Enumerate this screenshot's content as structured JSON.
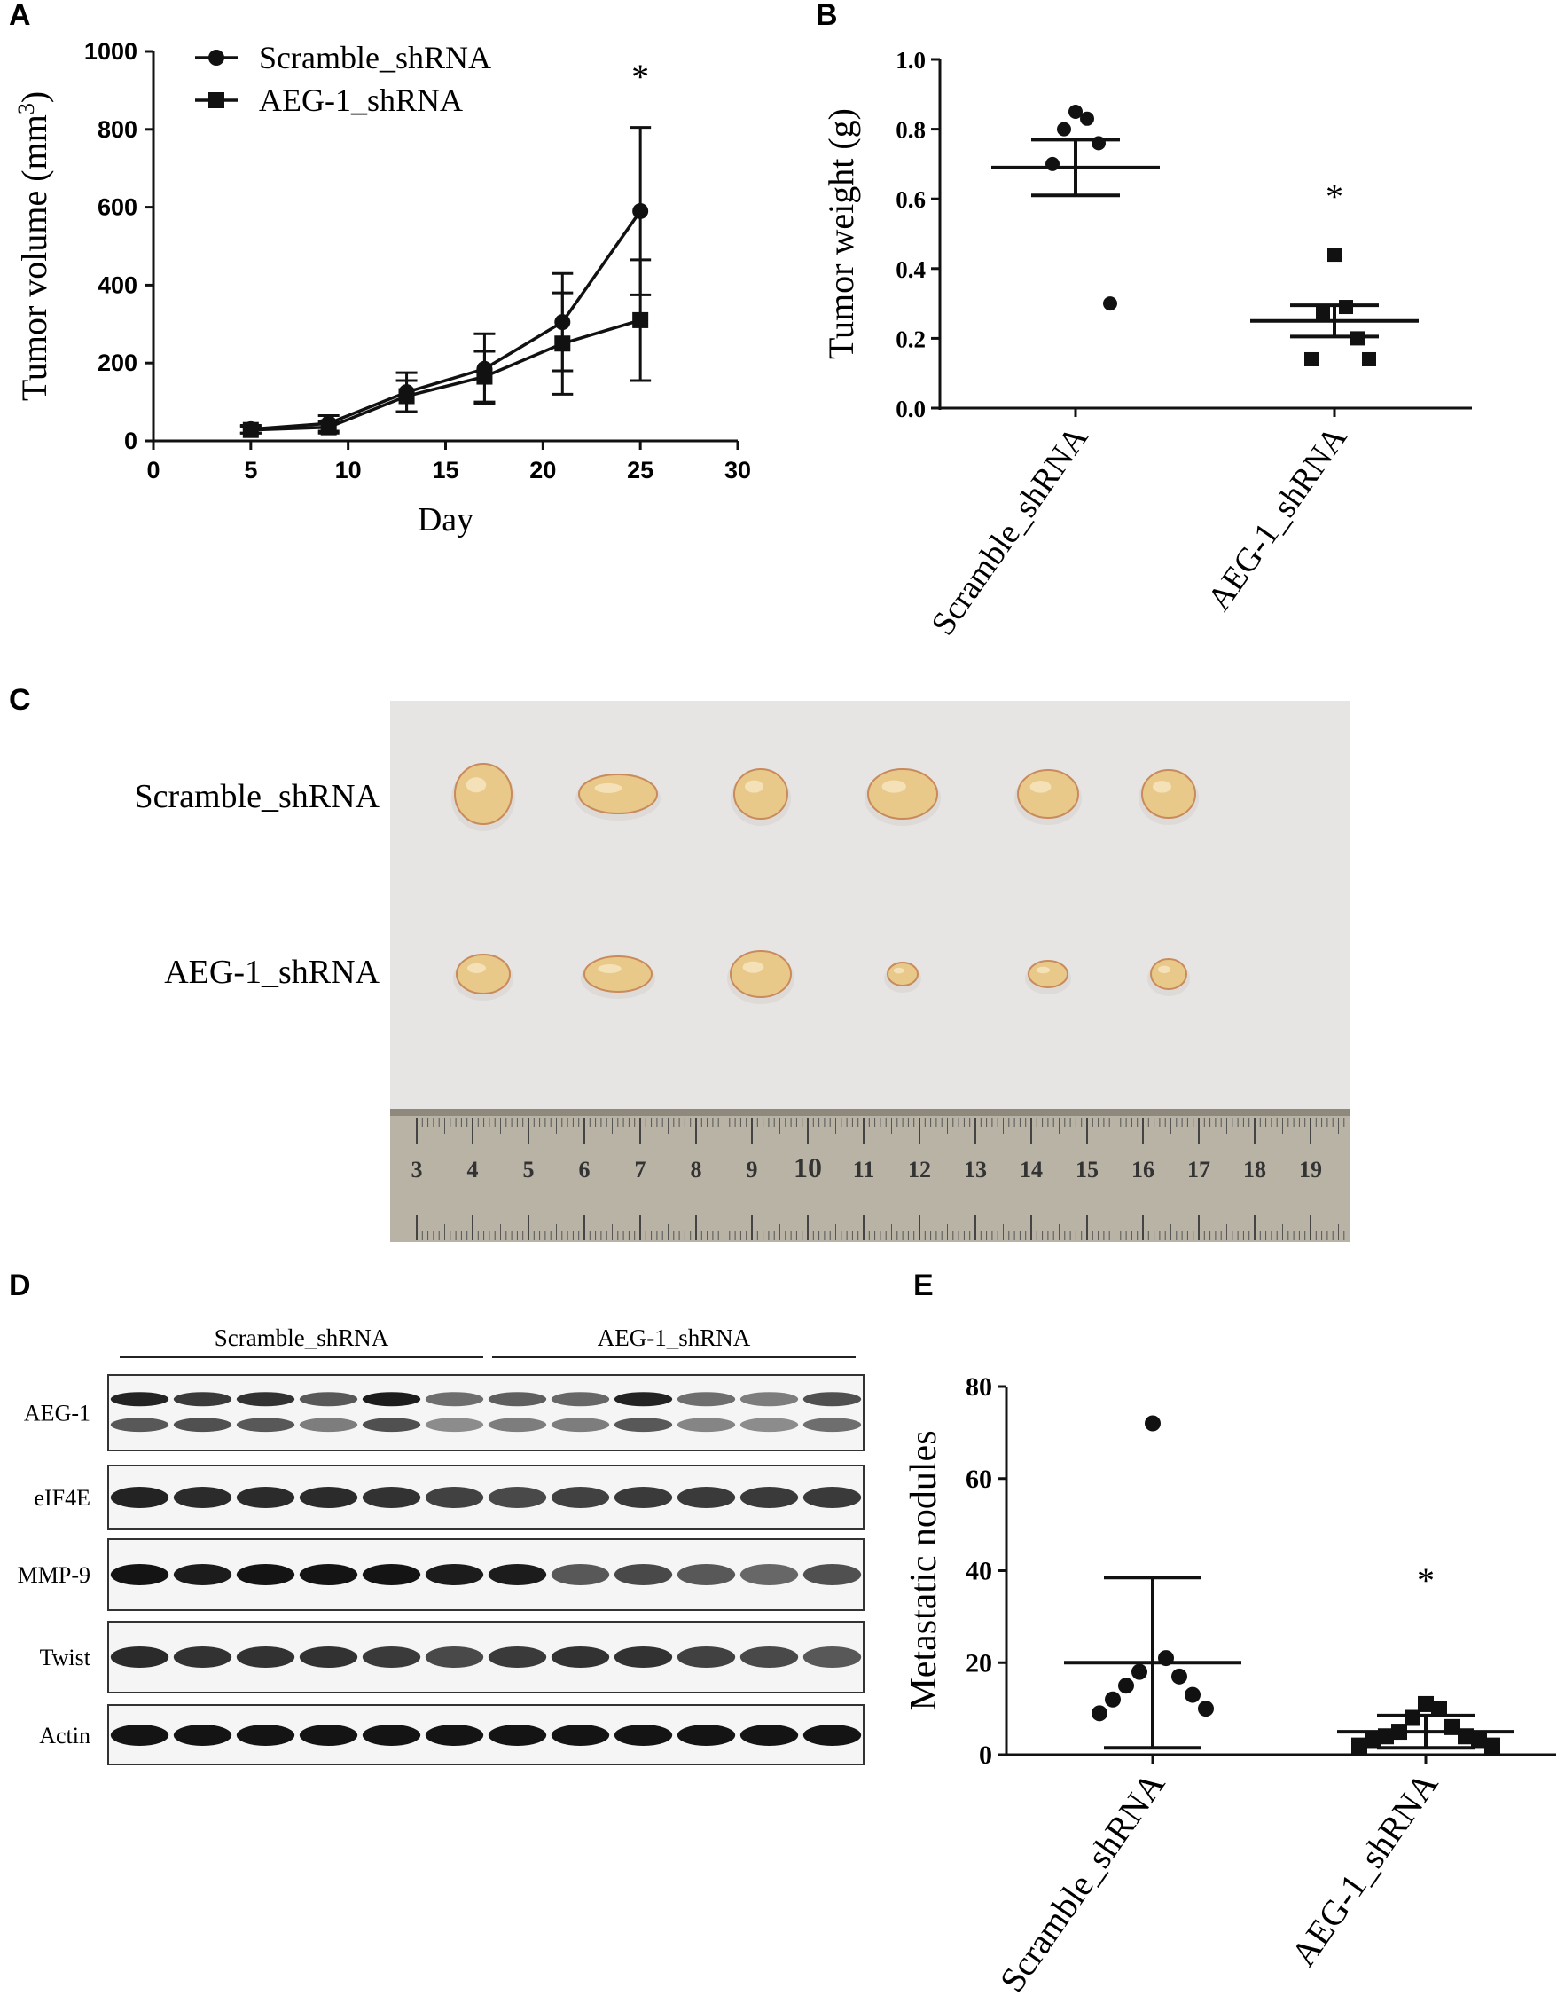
{
  "panels": {
    "A": "A",
    "B": "B",
    "C": "C",
    "D": "D",
    "E": "E"
  },
  "groups": [
    "Scramble_shRNA",
    "AEG-1_shRNA"
  ],
  "significance": "*",
  "photo": {
    "row_labels": [
      "Scramble_shRNA",
      "AEG-1_shRNA"
    ],
    "ruler_numbers": [
      "3",
      "4",
      "5",
      "6",
      "7",
      "8",
      "9",
      "10",
      "11",
      "12",
      "13",
      "14",
      "15",
      "16",
      "17",
      "18",
      "19"
    ],
    "colors": {
      "background": "#e7e6e4",
      "tumor": "#e8c98a",
      "tumor_edge": "#c98a5c",
      "ruler": "#b9b3a6"
    }
  },
  "blot": {
    "group_labels": [
      "Scramble_shRNA",
      "AEG-1_shRNA"
    ],
    "proteins": [
      "AEG-1",
      "eIF4E",
      "MMP-9",
      "Twist",
      "Actin"
    ],
    "lanes": 12
  },
  "chart_data": [
    {
      "type": "line",
      "panel": "A",
      "xlabel": "Day",
      "ylabel": "Tumor volume (mm",
      "ylabel_sup": "3",
      "ylabel_close": ")",
      "xlim": [
        0,
        30
      ],
      "ylim": [
        0,
        1000
      ],
      "xticks": [
        "0",
        "5",
        "10",
        "15",
        "20",
        "25",
        "30"
      ],
      "yticks": [
        "0",
        "200",
        "400",
        "600",
        "800",
        "1000"
      ],
      "legend_position": "top-left",
      "annotation": "*",
      "series": [
        {
          "name": "Scramble_shRNA",
          "marker": "circle",
          "x": [
            5,
            9,
            13,
            17,
            21,
            25
          ],
          "y": [
            30,
            45,
            125,
            185,
            305,
            590
          ],
          "err": [
            10,
            20,
            50,
            90,
            125,
            215
          ]
        },
        {
          "name": "AEG-1_shRNA",
          "marker": "square",
          "x": [
            5,
            9,
            13,
            17,
            21,
            25
          ],
          "y": [
            28,
            35,
            115,
            165,
            250,
            310
          ],
          "err": [
            8,
            15,
            40,
            65,
            130,
            155
          ]
        }
      ]
    },
    {
      "type": "scatter",
      "panel": "B",
      "ylabel": "Tumor weight (g)",
      "ylim": [
        0,
        1.0
      ],
      "yticks": [
        "0.0",
        "0.2",
        "0.4",
        "0.6",
        "0.8",
        "1.0"
      ],
      "categories": [
        "Scramble_shRNA",
        "AEG-1_shRNA"
      ],
      "annotation": "*",
      "series": [
        {
          "name": "Scramble_shRNA",
          "marker": "circle",
          "values": [
            0.85,
            0.83,
            0.8,
            0.76,
            0.7,
            0.3
          ],
          "mean": 0.69,
          "sem": 0.08
        },
        {
          "name": "AEG-1_shRNA",
          "marker": "square",
          "values": [
            0.44,
            0.29,
            0.27,
            0.2,
            0.14,
            0.14
          ],
          "mean": 0.25,
          "sem": 0.045
        }
      ]
    },
    {
      "type": "scatter",
      "panel": "E",
      "ylabel": "Metastatic nodules",
      "ylim": [
        0,
        80
      ],
      "yticks": [
        "0",
        "20",
        "40",
        "60",
        "80"
      ],
      "categories": [
        "Scramble_shRNA",
        "AEG-1_shRNA"
      ],
      "annotation": "*",
      "series": [
        {
          "name": "Scramble_shRNA",
          "marker": "circle",
          "values": [
            72,
            21,
            18,
            17,
            15,
            13,
            12,
            10,
            9
          ],
          "mean": 20,
          "sd": 18.5
        },
        {
          "name": "AEG-1_shRNA",
          "marker": "square",
          "values": [
            11,
            10,
            8,
            6,
            5,
            4,
            4,
            3,
            3,
            2,
            2
          ],
          "mean": 5,
          "sd": 3.5
        }
      ]
    }
  ]
}
